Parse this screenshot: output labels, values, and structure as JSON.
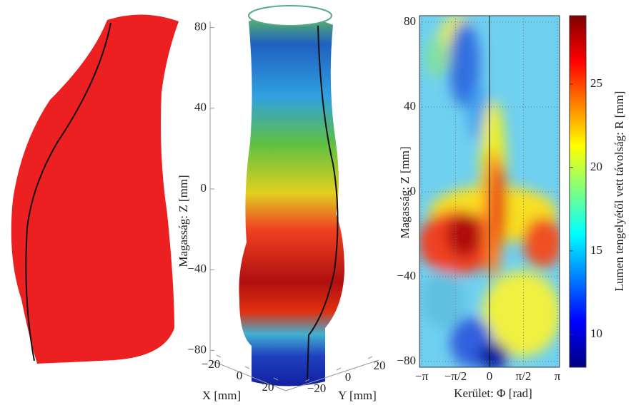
{
  "panel_3d": {
    "z_label": "Magasság: Z [mm]",
    "z_ticks": [
      80,
      40,
      0,
      {
        "value": -40,
        "label": "−40"
      },
      {
        "value": -80,
        "label": "−80"
      }
    ],
    "x_label": "X [mm]",
    "x_ticks": [
      {
        "value": -20,
        "label": "−20"
      },
      0,
      20
    ],
    "y_label": "Y [mm]",
    "y_ticks": [
      {
        "value": -20,
        "label": "−20"
      },
      0,
      20
    ]
  },
  "contour": {
    "y_label": "Magasság: Z [mm]",
    "x_label": "Kerület: Φ [rad]",
    "ylim": [
      -82.7,
      83
    ],
    "yticks": [
      80,
      40,
      0,
      {
        "value": -40,
        "label": "−40"
      },
      {
        "value": -80,
        "label": "−80"
      }
    ],
    "xlim": [
      -3.1416,
      3.1416
    ],
    "xticks": [
      {
        "value": -3.1416,
        "label": "−π"
      },
      {
        "value": -1.5708,
        "label": "−π/2"
      },
      0,
      {
        "value": 1.5708,
        "label": "π/2"
      },
      {
        "value": 3.1416,
        "label": "π"
      }
    ],
    "grid": true,
    "colorbar": {
      "label": "Lumen tengelyétől vett távolság: R [mm]",
      "lim": [
        8.03,
        29.1
      ],
      "ticks": [
        10,
        15,
        20,
        25
      ]
    }
  }
}
